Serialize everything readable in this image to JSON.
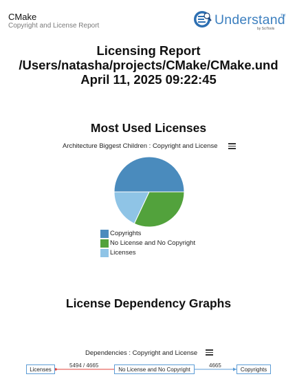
{
  "header": {
    "project_name": "CMake",
    "subtitle": "Copyright and License Report",
    "logo_text": "Understand",
    "logo_tm": "TM",
    "logo_by": "by SciTools"
  },
  "report": {
    "title_line1": "Licensing Report",
    "title_line2": "/Users/natasha/projects/CMake/CMake.und",
    "title_line3": "April 11, 2025 09:22:45"
  },
  "most_used": {
    "heading": "Most Used Licenses",
    "caption": "Architecture Biggest Children : Copyright and License"
  },
  "chart_data": {
    "type": "pie",
    "title": "Architecture Biggest Children : Copyright and License",
    "categories": [
      "Copyrights",
      "No License and No Copyright",
      "Licenses"
    ],
    "values": [
      50,
      32,
      18
    ],
    "colors": [
      "#4a8bbd",
      "#52a23c",
      "#8fc4e6"
    ],
    "legend_position": "bottom-left"
  },
  "dependency": {
    "heading": "License Dependency Graphs",
    "caption": "Dependencies : Copyright and License",
    "nodes": {
      "licenses": "Licenses",
      "no_license": "No License and No Copyright",
      "copyrights": "Copyrights"
    },
    "edges": {
      "left": "5494 / 4665",
      "right": "4665"
    },
    "colors": {
      "node_border": "#5b9bd5",
      "left_edge": "#e0403a",
      "right_edge": "#5b9bd5"
    }
  }
}
